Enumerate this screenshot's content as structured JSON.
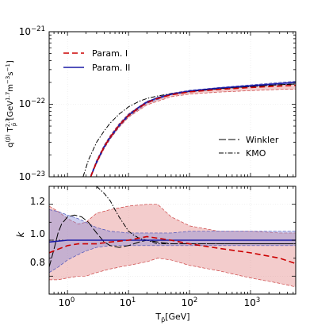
{
  "figure": {
    "top_ylabel": "q(p̄) Tp̄2.7 [GeV1.7m−3s−1]",
    "top_ylabel_parts": {
      "q": "q",
      "q_sup": "(p̄)",
      "T": " T",
      "T_sup": "2.7",
      "T_sub": "p̄",
      "unit_a": " [GeV",
      "unit_a_sup": "1.7",
      "unit_b": "m",
      "unit_b_sup": "−3",
      "unit_c": "s",
      "unit_c_sup": "−1",
      "unit_end": "]"
    },
    "bottom_ylabel": "k",
    "xlabel": "Tp̄[GeV]",
    "xlabel_parts": {
      "T": "T",
      "T_sub": "p̄",
      "unit": "[GeV]"
    },
    "top_yticks": [
      {
        "value": -21,
        "base": "10",
        "exp": "−21"
      },
      {
        "value": -22,
        "base": "10",
        "exp": "−22"
      },
      {
        "value": -23,
        "base": "10",
        "exp": "−23"
      }
    ],
    "bottom_yticks": [
      "1.2",
      "1.0",
      "0.8"
    ],
    "xticks": [
      {
        "value": 0,
        "base": "10",
        "exp": "0"
      },
      {
        "value": 1,
        "base": "10",
        "exp": "1"
      },
      {
        "value": 2,
        "base": "10",
        "exp": "2"
      },
      {
        "value": 3,
        "base": "10",
        "exp": "3"
      }
    ],
    "legend_params": [
      "Param. I",
      "Param. II"
    ],
    "legend_models": [
      "Winkler",
      "KMO"
    ],
    "colors": {
      "param1": "#cc0000",
      "param2": "#1a1aa6",
      "band1": "#e07f7f",
      "band2": "#7f86d8",
      "band_edge1": "#cc4444",
      "band_edge2": "#4a50b8",
      "ref": "#000000"
    }
  },
  "chart_data": [
    {
      "type": "line",
      "panel": "top",
      "xscale": "log",
      "yscale": "log",
      "xlim": [
        0.5,
        5500
      ],
      "ylim": [
        1e-23,
        1e-21
      ],
      "series": [
        {
          "name": "Param. I",
          "style": "dashed",
          "x": [
            2.4,
            3,
            4,
            5,
            7,
            10,
            15,
            20,
            30,
            50,
            100,
            300,
            1000,
            3000,
            5500
          ],
          "y": [
            1e-23,
            1.6e-23,
            2.6e-23,
            3.5e-23,
            5.1e-23,
            7e-23,
            9e-23,
            1.05e-22,
            1.2e-22,
            1.35e-22,
            1.48e-22,
            1.6e-22,
            1.7e-22,
            1.78e-22,
            1.82e-22
          ]
        },
        {
          "name": "Param. II",
          "style": "solid",
          "x": [
            2.4,
            3,
            4,
            5,
            7,
            10,
            15,
            20,
            30,
            50,
            100,
            300,
            1000,
            3000,
            5500
          ],
          "y": [
            1e-23,
            1.6e-23,
            2.6e-23,
            3.5e-23,
            5.1e-23,
            7.1e-23,
            9.2e-23,
            1.07e-22,
            1.23e-22,
            1.38e-22,
            1.52e-22,
            1.67e-22,
            1.8e-22,
            1.93e-22,
            2e-22
          ]
        },
        {
          "name": "Winkler",
          "style": "long-dash",
          "x": [
            2.4,
            3,
            4,
            5,
            7,
            10,
            15,
            20,
            30,
            50,
            100,
            300,
            1000,
            3000,
            5500
          ],
          "y": [
            1e-23,
            1.6e-23,
            2.6e-23,
            3.5e-23,
            5.1e-23,
            7e-23,
            9.1e-23,
            1.06e-22,
            1.22e-22,
            1.37e-22,
            1.5e-22,
            1.64e-22,
            1.76e-22,
            1.86e-22,
            1.9e-22
          ]
        },
        {
          "name": "KMO",
          "style": "dash-dot",
          "x": [
            1.8,
            2.2,
            3,
            4,
            5,
            7,
            10,
            15,
            20,
            30,
            50,
            100,
            300,
            1000,
            3000,
            5500
          ],
          "y": [
            1e-23,
            1.7e-23,
            3e-23,
            4.3e-23,
            5.5e-23,
            7.3e-23,
            9.2e-23,
            1.1e-22,
            1.2e-22,
            1.3e-22,
            1.4e-22,
            1.5e-22,
            1.63e-22,
            1.75e-22,
            1.86e-22,
            1.9e-22
          ]
        }
      ],
      "bands": [
        {
          "name": "Param. I",
          "x": [
            2.4,
            3,
            4,
            5,
            7,
            10,
            20,
            50,
            100,
            300,
            1000,
            3000,
            5500
          ],
          "upper": [
            1.05e-23,
            1.7e-23,
            2.75e-23,
            3.7e-23,
            5.4e-23,
            7.4e-23,
            1.1e-22,
            1.42e-22,
            1.55e-22,
            1.68e-22,
            1.78e-22,
            1.86e-22,
            1.9e-22
          ],
          "lower": [
            1e-23,
            1.52e-23,
            2.45e-23,
            3.3e-23,
            4.8e-23,
            6.6e-23,
            9.8e-23,
            1.27e-22,
            1.38e-22,
            1.47e-22,
            1.54e-22,
            1.6e-22,
            1.62e-22
          ]
        },
        {
          "name": "Param. II",
          "x": [
            2.4,
            3,
            4,
            5,
            7,
            10,
            20,
            50,
            100,
            300,
            1000,
            3000,
            5500
          ],
          "upper": [
            1.05e-23,
            1.68e-23,
            2.72e-23,
            3.65e-23,
            5.3e-23,
            7.3e-23,
            1.1e-22,
            1.41e-22,
            1.56e-22,
            1.7e-22,
            1.85e-22,
            2e-22,
            2.08e-22
          ],
          "lower": [
            1e-23,
            1.53e-23,
            2.5e-23,
            3.35e-23,
            4.9e-23,
            6.8e-23,
            1.03e-22,
            1.35e-22,
            1.48e-22,
            1.63e-22,
            1.75e-22,
            1.86e-22,
            1.92e-22
          ]
        }
      ]
    },
    {
      "type": "line",
      "panel": "bottom",
      "xscale": "log",
      "yscale": "linear",
      "xlim": [
        0.5,
        5500
      ],
      "ylim": [
        0.7,
        1.3
      ],
      "reference_line": 1.0,
      "series": [
        {
          "name": "Param. I",
          "style": "dashed",
          "x": [
            0.5,
            0.7,
            1,
            1.5,
            2,
            3,
            5,
            10,
            20,
            50,
            100,
            300,
            1000,
            3000,
            5500
          ],
          "y": [
            0.93,
            0.95,
            0.97,
            0.98,
            0.98,
            0.98,
            0.99,
            1.0,
            1.02,
            1.0,
            0.98,
            0.955,
            0.93,
            0.9,
            0.87
          ]
        },
        {
          "name": "Param. II",
          "style": "solid",
          "x": [
            0.5,
            1,
            2,
            5,
            10,
            30,
            100,
            300,
            1000,
            3000,
            5500
          ],
          "y": [
            0.99,
            1.0,
            1.0,
            1.0,
            1.0,
            1.0,
            1.0,
            1.0,
            1.0,
            1.0,
            1.0
          ]
        },
        {
          "name": "Winkler",
          "style": "long-dash",
          "x": [
            0.5,
            0.6,
            0.7,
            0.8,
            1,
            1.3,
            1.7,
            2.2,
            3,
            4,
            5,
            7,
            10,
            15,
            20,
            30,
            50,
            100,
            300,
            1000,
            3000,
            5500
          ],
          "y": [
            0.85,
            0.95,
            1.04,
            1.09,
            1.13,
            1.14,
            1.13,
            1.1,
            1.04,
            0.99,
            0.97,
            0.96,
            0.97,
            0.99,
            1.0,
            0.99,
            0.98,
            0.98,
            0.98,
            0.98,
            0.98,
            0.98
          ]
        },
        {
          "name": "KMO",
          "style": "dash-dot",
          "x": [
            3,
            4,
            5,
            6,
            7,
            8,
            10,
            12,
            15,
            20,
            30,
            50,
            100,
            300,
            1000,
            3000,
            5500
          ],
          "y": [
            1.3,
            1.26,
            1.22,
            1.17,
            1.13,
            1.1,
            1.05,
            1.03,
            1.01,
            1.0,
            0.98,
            0.98,
            0.98,
            0.98,
            0.98,
            0.98,
            0.98
          ]
        }
      ],
      "bands": [
        {
          "name": "Param. I",
          "x": [
            0.5,
            0.7,
            1,
            1.5,
            2,
            3,
            5,
            10,
            20,
            30,
            50,
            100,
            300,
            1000,
            3000,
            5500
          ],
          "upper": [
            1.19,
            1.16,
            1.12,
            1.09,
            1.1,
            1.15,
            1.17,
            1.19,
            1.2,
            1.2,
            1.13,
            1.08,
            1.05,
            1.05,
            1.04,
            1.04
          ],
          "lower": [
            0.78,
            0.78,
            0.79,
            0.8,
            0.8,
            0.82,
            0.84,
            0.86,
            0.88,
            0.9,
            0.89,
            0.86,
            0.83,
            0.79,
            0.76,
            0.74
          ]
        },
        {
          "name": "Param. II",
          "x": [
            0.5,
            0.7,
            1,
            1.5,
            2,
            3,
            5,
            10,
            20,
            50,
            100,
            300,
            1000,
            3000,
            5500
          ],
          "upper": [
            1.17,
            1.16,
            1.14,
            1.12,
            1.1,
            1.07,
            1.05,
            1.04,
            1.04,
            1.04,
            1.05,
            1.05,
            1.05,
            1.05,
            1.05
          ],
          "lower": [
            0.82,
            0.85,
            0.89,
            0.92,
            0.94,
            0.96,
            0.97,
            0.97,
            0.97,
            0.97,
            0.97,
            0.97,
            0.97,
            0.97,
            0.97
          ]
        }
      ]
    }
  ]
}
